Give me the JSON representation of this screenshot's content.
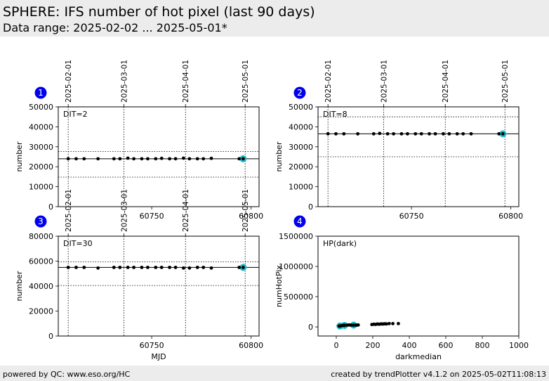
{
  "header": {
    "title": "SPHERE: IFS number of hot pixel (last 90 days)",
    "subtitle": "Data range: 2025-02-02 ... 2025-05-01*"
  },
  "footer": {
    "left": "powered by QC: www.eso.org/HC",
    "right": "created by trendPlotter v4.1.2 on 2025-05-02T11:08:13"
  },
  "colors": {
    "marker": "#000000",
    "highlight": "#17becf",
    "badge": "#0000ee"
  },
  "chart_data": [
    {
      "type": "scatter",
      "panel": "1",
      "annotation": "DIT=2",
      "xlabel": "",
      "ylabel": "number",
      "xlim": [
        60703,
        60804
      ],
      "ylim": [
        0,
        50000
      ],
      "xticks": [
        60750,
        60800
      ],
      "yticks": [
        0,
        10000,
        20000,
        30000,
        40000,
        50000
      ],
      "date_ticks": [
        {
          "mjd": 60708,
          "label": "2025-02-01"
        },
        {
          "mjd": 60736,
          "label": "2025-03-01"
        },
        {
          "mjd": 60767,
          "label": "2025-04-01"
        },
        {
          "mjd": 60797,
          "label": "2025-05-01"
        }
      ],
      "reference_lines": {
        "median": 24000,
        "upper": 27600,
        "lower": 14800
      },
      "x": [
        60708,
        60712,
        60716,
        60723,
        60731,
        60734,
        60738,
        60741,
        60745,
        60748,
        60752,
        60755,
        60759,
        60762,
        60766,
        60769,
        60773,
        60776,
        60780,
        60794
      ],
      "y": [
        24000,
        24000,
        24000,
        24000,
        24000,
        24000,
        24300,
        24000,
        24000,
        24000,
        24000,
        24200,
        24000,
        24000,
        24300,
        24000,
        24000,
        24000,
        24200,
        24000
      ],
      "highlight": [
        {
          "x": 60796,
          "y": 24000
        }
      ]
    },
    {
      "type": "scatter",
      "panel": "2",
      "annotation": "DIT=8",
      "xlabel": "",
      "ylabel": "number",
      "xlim": [
        60703,
        60804
      ],
      "ylim": [
        0,
        50000
      ],
      "xticks": [
        60750,
        60800
      ],
      "yticks": [
        0,
        10000,
        20000,
        30000,
        40000,
        50000
      ],
      "date_ticks": [
        {
          "mjd": 60708,
          "label": "2025-02-01"
        },
        {
          "mjd": 60736,
          "label": "2025-03-01"
        },
        {
          "mjd": 60767,
          "label": "2025-04-01"
        },
        {
          "mjd": 60797,
          "label": "2025-05-01"
        }
      ],
      "reference_lines": {
        "median": 36500,
        "upper": 45000,
        "lower": 25000
      },
      "x": [
        60708,
        60712,
        60716,
        60723,
        60731,
        60734,
        60738,
        60741,
        60745,
        60748,
        60752,
        60755,
        60759,
        60762,
        60766,
        60769,
        60773,
        60776,
        60780,
        60794
      ],
      "y": [
        36500,
        36500,
        36500,
        36500,
        36500,
        36700,
        36500,
        36500,
        36500,
        36500,
        36500,
        36500,
        36500,
        36500,
        36500,
        36500,
        36500,
        36500,
        36500,
        36500
      ],
      "highlight": [
        {
          "x": 60796,
          "y": 36500
        }
      ]
    },
    {
      "type": "scatter",
      "panel": "3",
      "annotation": "DIT=30",
      "xlabel": "MJD",
      "ylabel": "number",
      "xlim": [
        60703,
        60804
      ],
      "ylim": [
        0,
        80000
      ],
      "xticks": [
        60750,
        60800
      ],
      "yticks": [
        0,
        20000,
        40000,
        60000,
        80000
      ],
      "date_ticks": [
        {
          "mjd": 60708,
          "label": "2025-02-01"
        },
        {
          "mjd": 60736,
          "label": "2025-03-01"
        },
        {
          "mjd": 60767,
          "label": "2025-04-01"
        },
        {
          "mjd": 60797,
          "label": "2025-05-01"
        }
      ],
      "reference_lines": {
        "median": 55000,
        "upper": 59500,
        "lower": 40500
      },
      "x": [
        60708,
        60712,
        60716,
        60723,
        60731,
        60734,
        60738,
        60741,
        60745,
        60748,
        60752,
        60755,
        60759,
        60762,
        60766,
        60769,
        60773,
        60776,
        60780,
        60794
      ],
      "y": [
        55000,
        55000,
        55000,
        54500,
        55000,
        55000,
        55000,
        55000,
        55000,
        55000,
        55000,
        55000,
        55000,
        55000,
        54500,
        54500,
        55000,
        55000,
        54500,
        55000
      ],
      "highlight": [
        {
          "x": 60796,
          "y": 55000
        }
      ]
    },
    {
      "type": "scatter",
      "panel": "4",
      "annotation": "HP(dark)",
      "xlabel": "darkmedian",
      "ylabel": "numHotPix",
      "xlim": [
        -100,
        1000
      ],
      "ylim": [
        -150000,
        1500000
      ],
      "xticks": [
        0,
        200,
        400,
        600,
        800,
        1000
      ],
      "yticks": [
        0,
        500000,
        1000000,
        1500000
      ],
      "x": [
        15,
        25,
        35,
        45,
        60,
        70,
        80,
        95,
        110,
        120,
        195,
        205,
        215,
        225,
        235,
        245,
        255,
        265,
        275,
        290,
        310,
        340
      ],
      "y": [
        15000,
        20000,
        25000,
        28000,
        30000,
        32000,
        30000,
        28000,
        30000,
        32000,
        40000,
        45000,
        42000,
        48000,
        45000,
        50000,
        48000,
        52000,
        50000,
        55000,
        55000,
        55000
      ],
      "highlight": [
        {
          "x": 20,
          "y": 15000
        },
        {
          "x": 45,
          "y": 25000
        },
        {
          "x": 95,
          "y": 30000
        }
      ]
    }
  ]
}
